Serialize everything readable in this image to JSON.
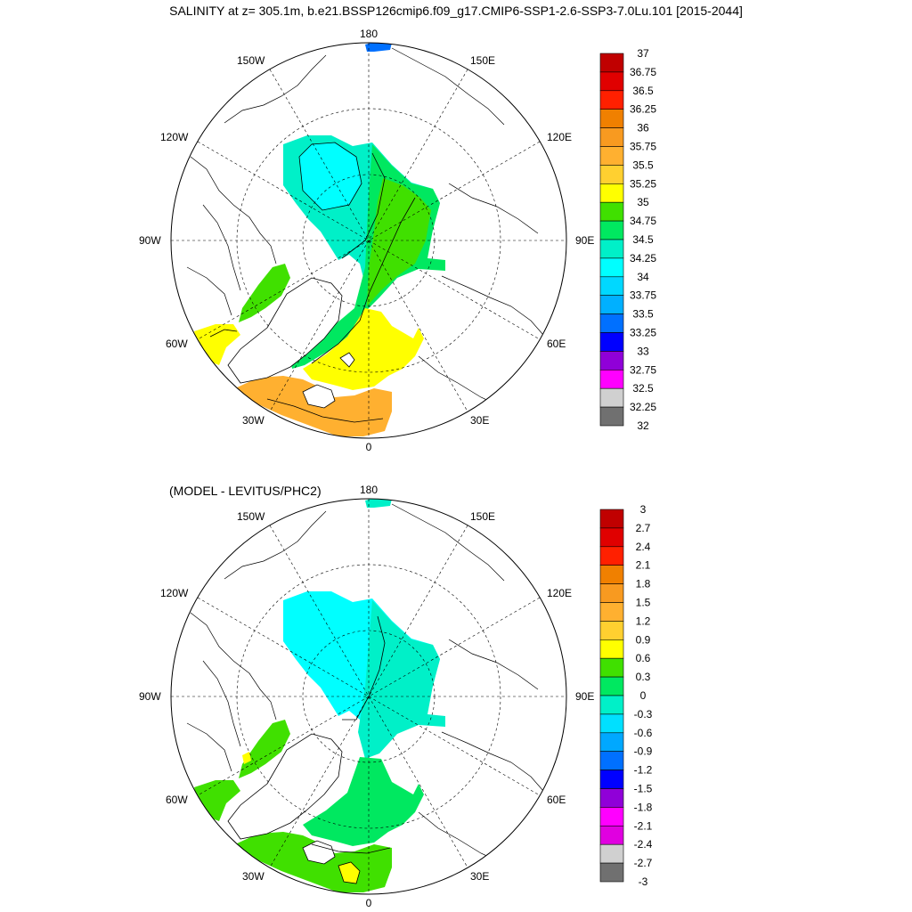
{
  "title": "SALINITY at z= 305.1m, b.e21.BSSP126cmip6.f09_g17.CMIP6-SSP1-2.6-SSP3-7.0Lu.101 [2015-2044]",
  "subtitle": "(MODEL - LEVITUS/PHC2)",
  "longitude_labels": [
    "180",
    "150E",
    "120E",
    "90E",
    "60E",
    "30E",
    "0",
    "30W",
    "60W",
    "90W",
    "120W",
    "150W"
  ],
  "panels": [
    {
      "name": "salinity",
      "colorbar_labels": [
        "37",
        "36.75",
        "36.5",
        "36.25",
        "36",
        "35.75",
        "35.5",
        "35.25",
        "35",
        "34.75",
        "34.5",
        "34.25",
        "34",
        "33.75",
        "33.5",
        "33.25",
        "33",
        "32.75",
        "32.5",
        "32.25",
        "32"
      ],
      "colorbar_colors": [
        "#c00000",
        "#e00000",
        "#ff2000",
        "#f08000",
        "#f89a20",
        "#ffb030",
        "#ffd030",
        "#ffff00",
        "#40e000",
        "#00e860",
        "#00f0c8",
        "#00ffff",
        "#00d8ff",
        "#00b0ff",
        "#0070ff",
        "#0000ff",
        "#9000d8",
        "#ff00ff",
        "#d0d0d0",
        "#707070"
      ],
      "regions": {
        "central_arctic": "#00f0c8",
        "canada_basin_core": "#00ffff",
        "eurasian_arm": "#00e860",
        "eurasian_inner": "#40e000",
        "baffin": "#40e000",
        "atlantic_inflow": "#ffff00",
        "labrador": "#ffff00",
        "north_atlantic": "#ffb030",
        "bering": "#0070ff"
      }
    },
    {
      "name": "difference",
      "colorbar_labels": [
        "3",
        "2.7",
        "2.4",
        "2.1",
        "1.8",
        "1.5",
        "1.2",
        "0.9",
        "0.6",
        "0.3",
        "0",
        "-0.3",
        "-0.6",
        "-0.9",
        "-1.2",
        "-1.5",
        "-1.8",
        "-2.1",
        "-2.4",
        "-2.7",
        "-3"
      ],
      "colorbar_colors": [
        "#c00000",
        "#e00000",
        "#ff2000",
        "#f08000",
        "#f89a20",
        "#ffb030",
        "#ffd030",
        "#ffff00",
        "#40e000",
        "#00e860",
        "#00f0c8",
        "#00e0ff",
        "#00a8ff",
        "#0070ff",
        "#0000ff",
        "#9000d8",
        "#ff00ff",
        "#e000e0",
        "#d0d0d0",
        "#707070"
      ],
      "regions": {
        "central_arctic": "#00ffff",
        "eurasian_arm": "#00f0c8",
        "atlantic_inflow": "#00e860",
        "baffin": "#40e000",
        "labrador": "#40e000",
        "north_atlantic": "#40e000",
        "hotspot": "#ffff00",
        "bering": "#00f0c8"
      }
    }
  ]
}
